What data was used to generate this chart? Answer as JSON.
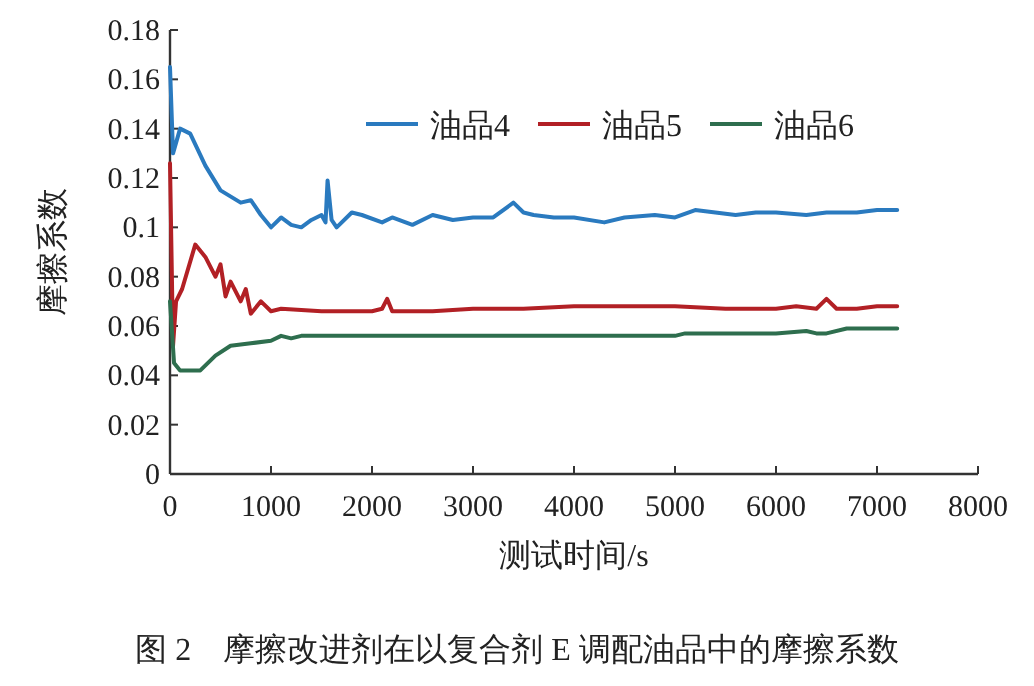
{
  "chart_data": {
    "type": "line",
    "title": "图 2　摩擦改进剂在以复合剂 E 调配油品中的摩擦系数",
    "xlabel": "测试时间/s",
    "ylabel": "摩擦系数",
    "xlim": [
      0,
      8000
    ],
    "xticks": [
      0,
      1000,
      2000,
      3000,
      4000,
      5000,
      6000,
      7000,
      8000
    ],
    "ylim": [
      0,
      0.18
    ],
    "yticks": [
      0,
      0.02,
      0.04,
      0.06,
      0.08,
      0.1,
      0.12,
      0.14,
      0.16,
      0.18
    ],
    "legend": "top",
    "grid": false,
    "line_style": "solid",
    "marker": "none",
    "series": [
      {
        "name": "油品4",
        "color": "#2a7abf",
        "x": [
          0,
          30,
          100,
          200,
          350,
          500,
          700,
          800,
          900,
          1000,
          1100,
          1200,
          1300,
          1400,
          1500,
          1540,
          1560,
          1600,
          1650,
          1800,
          1900,
          2100,
          2200,
          2400,
          2600,
          2800,
          3000,
          3200,
          3400,
          3500,
          3600,
          3800,
          4000,
          4300,
          4500,
          4800,
          5000,
          5200,
          5400,
          5600,
          5800,
          6000,
          6300,
          6500,
          6800,
          7000,
          7200
        ],
        "values": [
          0.165,
          0.13,
          0.14,
          0.138,
          0.125,
          0.115,
          0.11,
          0.111,
          0.105,
          0.1,
          0.104,
          0.101,
          0.1,
          0.103,
          0.105,
          0.102,
          0.119,
          0.103,
          0.1,
          0.106,
          0.105,
          0.102,
          0.104,
          0.101,
          0.105,
          0.103,
          0.104,
          0.104,
          0.11,
          0.106,
          0.105,
          0.104,
          0.104,
          0.102,
          0.104,
          0.105,
          0.104,
          0.107,
          0.106,
          0.105,
          0.106,
          0.106,
          0.105,
          0.106,
          0.106,
          0.107,
          0.107
        ]
      },
      {
        "name": "油品5",
        "color": "#b22025",
        "x": [
          0,
          30,
          60,
          120,
          250,
          350,
          450,
          500,
          550,
          600,
          700,
          750,
          800,
          900,
          1000,
          1100,
          1500,
          2000,
          2100,
          2150,
          2200,
          2600,
          3000,
          3500,
          4000,
          4500,
          5000,
          5500,
          6000,
          6200,
          6400,
          6500,
          6600,
          6800,
          7000,
          7200
        ],
        "values": [
          0.126,
          0.052,
          0.07,
          0.075,
          0.093,
          0.088,
          0.08,
          0.085,
          0.072,
          0.078,
          0.07,
          0.075,
          0.065,
          0.07,
          0.066,
          0.067,
          0.066,
          0.066,
          0.067,
          0.071,
          0.066,
          0.066,
          0.067,
          0.067,
          0.068,
          0.068,
          0.068,
          0.067,
          0.067,
          0.068,
          0.067,
          0.071,
          0.067,
          0.067,
          0.068,
          0.068
        ]
      },
      {
        "name": "油品6",
        "color": "#2e6e4e",
        "x": [
          0,
          40,
          100,
          300,
          450,
          600,
          800,
          1000,
          1100,
          1200,
          1300,
          2000,
          3000,
          4000,
          5000,
          5100,
          6000,
          6300,
          6400,
          6500,
          6700,
          7200
        ],
        "values": [
          0.07,
          0.045,
          0.042,
          0.042,
          0.048,
          0.052,
          0.053,
          0.054,
          0.056,
          0.055,
          0.056,
          0.056,
          0.056,
          0.056,
          0.056,
          0.057,
          0.057,
          0.058,
          0.057,
          0.057,
          0.059,
          0.059
        ]
      }
    ]
  }
}
